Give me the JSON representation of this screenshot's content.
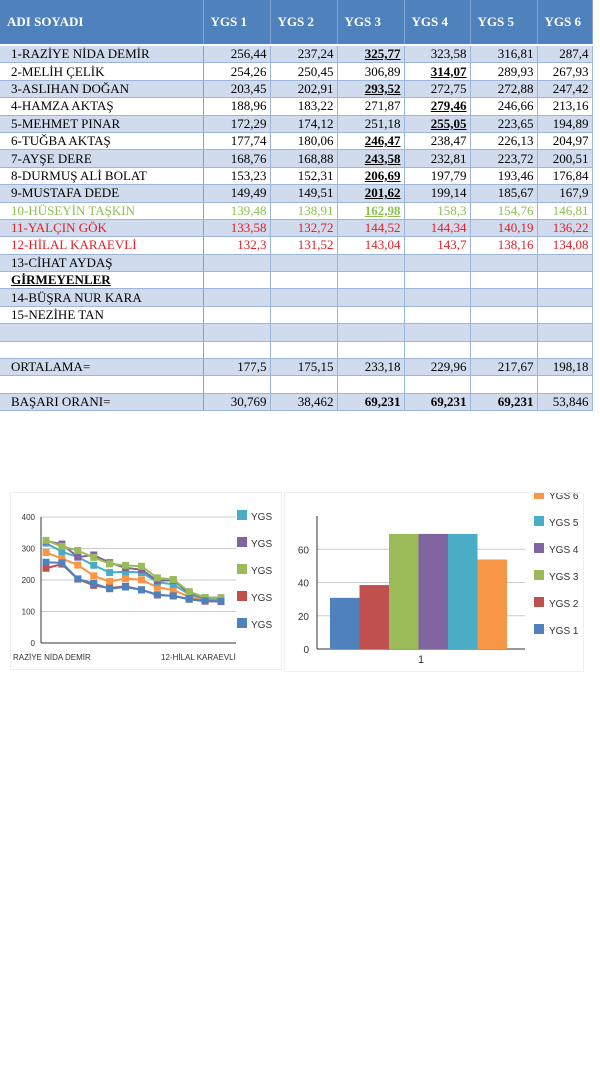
{
  "table": {
    "headers": [
      "ADI SOYADI",
      "YGS 1",
      "YGS 2",
      "YGS 3",
      "YGS 4",
      "YGS 5",
      "YGS 6"
    ],
    "rows": [
      {
        "name": "1-RAZİYE NİDA DEMİR",
        "values": [
          "256,44",
          "237,24",
          "325,77",
          "323,58",
          "316,81",
          "287,4"
        ],
        "emph": 2
      },
      {
        "name": "2-MELİH ÇELİK",
        "values": [
          "254,26",
          "250,45",
          "306,89",
          "314,07",
          "289,93",
          "267,93"
        ],
        "emph": 3
      },
      {
        "name": "3-ASLIHAN DOĞAN",
        "values": [
          "203,45",
          "202,91",
          "293,52",
          "272,75",
          "272,88",
          "247,42"
        ],
        "emph": 2
      },
      {
        "name": "4-HAMZA AKTAŞ",
        "values": [
          "188,96",
          "183,22",
          "271,87",
          "279,46",
          "246,66",
          "213,16"
        ],
        "emph": 3
      },
      {
        "name": "5-MEHMET PINAR",
        "values": [
          "172,29",
          "174,12",
          "251,18",
          "255,05",
          "223,65",
          "194,89"
        ],
        "emph": 3
      },
      {
        "name": "6-TUĞBA AKTAŞ",
        "values": [
          "177,74",
          "180,06",
          "246,47",
          "238,47",
          "226,13",
          "204,97"
        ],
        "emph": 2
      },
      {
        "name": "7-AYŞE DERE",
        "values": [
          "168,76",
          "168,88",
          "243,58",
          "232,81",
          "223,72",
          "200,51"
        ],
        "emph": 2
      },
      {
        "name": "8-DURMUŞ ALİ BOLAT",
        "values": [
          "153,23",
          "152,31",
          "206,69",
          "197,79",
          "193,46",
          "176,84"
        ],
        "emph": 2
      },
      {
        "name": "9-MUSTAFA DEDE",
        "values": [
          "149,49",
          "149,51",
          "201,62",
          "199,14",
          "185,67",
          "167,9"
        ],
        "emph": 2
      },
      {
        "name": "10-HÜSEYİN TAŞKIN",
        "values": [
          "139,48",
          "138,91",
          "162,98",
          "158,3",
          "154,76",
          "146,81"
        ],
        "emph": 2,
        "color": "#8cc152"
      },
      {
        "name": "11-YALÇIN GÖK",
        "values": [
          "133,58",
          "132,72",
          "144,52",
          "144,34",
          "140,19",
          "136,22"
        ],
        "color": "#e0202a"
      },
      {
        "name": "12-HİLAL KARAEVLİ",
        "values": [
          "132,3",
          "131,52",
          "143,04",
          "143,7",
          "138,16",
          "134,08"
        ],
        "color": "#e0202a"
      },
      {
        "name": "13-CİHAT AYDAŞ",
        "values": [
          "",
          "",
          "",
          "",
          "",
          ""
        ]
      },
      {
        "name": "GİRMEYENLER",
        "values": [
          "",
          "",
          "",
          "",
          "",
          ""
        ],
        "section": true
      },
      {
        "name": "14-BÜŞRA NUR KARA",
        "values": [
          "",
          "",
          "",
          "",
          "",
          ""
        ]
      },
      {
        "name": "15-NEZİHE TAN",
        "values": [
          "",
          "",
          "",
          "",
          "",
          ""
        ]
      },
      {
        "name": "",
        "values": [
          "",
          "",
          "",
          "",
          "",
          ""
        ]
      },
      {
        "name": "",
        "values": [
          "",
          "",
          "",
          "",
          "",
          ""
        ]
      },
      {
        "name": "ORTALAMA=",
        "values": [
          "177,5",
          "175,15",
          "233,18",
          "229,96",
          "217,67",
          "198,18"
        ]
      },
      {
        "name": "",
        "values": [
          "",
          "",
          "",
          "",
          "",
          ""
        ]
      },
      {
        "name": "BAŞARI ORANI=",
        "values": [
          "30,769",
          "38,462",
          "69,231",
          "69,231",
          "69,231",
          "53,846"
        ],
        "bold": [
          2,
          3,
          4
        ]
      }
    ]
  },
  "colors": {
    "header": "#4f81bd",
    "ygs1": "#4f81bd",
    "ygs2": "#c0504d",
    "ygs3": "#9bbb59",
    "ygs4": "#8064a2",
    "ygs5": "#4bacc6",
    "ygs6": "#f79646"
  },
  "chart_data": [
    {
      "type": "line",
      "ylim": [
        0,
        400
      ],
      "yticks": [
        "0",
        "100",
        "200",
        "300",
        "400"
      ],
      "xlabels": [
        "RAZİYE NİDA DEMİR",
        "12-HİLAL KARAEVLİ"
      ],
      "legend": [
        "YGS",
        "YGS",
        "YGS",
        "YGS",
        "YGS",
        "YGS"
      ],
      "series": [
        {
          "name": "YGS 1",
          "values": [
            256.44,
            254.26,
            203.45,
            188.96,
            172.29,
            177.74,
            168.76,
            153.23,
            149.49,
            139.48,
            133.58,
            132.3
          ]
        },
        {
          "name": "YGS 2",
          "values": [
            237.24,
            250.45,
            202.91,
            183.22,
            174.12,
            180.06,
            168.88,
            152.31,
            149.51,
            138.91,
            132.72,
            131.52
          ]
        },
        {
          "name": "YGS 3",
          "values": [
            325.77,
            306.89,
            293.52,
            271.87,
            251.18,
            246.47,
            243.58,
            206.69,
            201.62,
            162.98,
            144.52,
            143.04
          ]
        },
        {
          "name": "YGS 4",
          "values": [
            323.58,
            314.07,
            272.75,
            279.46,
            255.05,
            238.47,
            232.81,
            197.79,
            199.14,
            158.3,
            144.34,
            143.7
          ]
        },
        {
          "name": "YGS 5",
          "values": [
            316.81,
            289.93,
            272.88,
            246.66,
            223.65,
            226.13,
            223.72,
            193.46,
            185.67,
            154.76,
            140.19,
            138.16
          ]
        },
        {
          "name": "YGS 6",
          "values": [
            287.4,
            267.93,
            247.42,
            213.16,
            194.89,
            204.97,
            200.51,
            176.84,
            167.9,
            146.81,
            136.22,
            134.08
          ]
        }
      ]
    },
    {
      "type": "bar",
      "ylim": [
        0,
        80
      ],
      "yticks": [
        "0",
        "20",
        "40",
        "60"
      ],
      "categories": [
        "1"
      ],
      "legend": [
        "YGS 6",
        "YGS 5",
        "YGS 4",
        "YGS 3",
        "YGS 2",
        "YGS 1"
      ],
      "series": [
        {
          "name": "YGS 1",
          "values": [
            30.769
          ]
        },
        {
          "name": "YGS 2",
          "values": [
            38.462
          ]
        },
        {
          "name": "YGS 3",
          "values": [
            69.231
          ]
        },
        {
          "name": "YGS 4",
          "values": [
            69.231
          ]
        },
        {
          "name": "YGS 5",
          "values": [
            69.231
          ]
        },
        {
          "name": "YGS 6",
          "values": [
            53.846
          ]
        }
      ]
    }
  ]
}
